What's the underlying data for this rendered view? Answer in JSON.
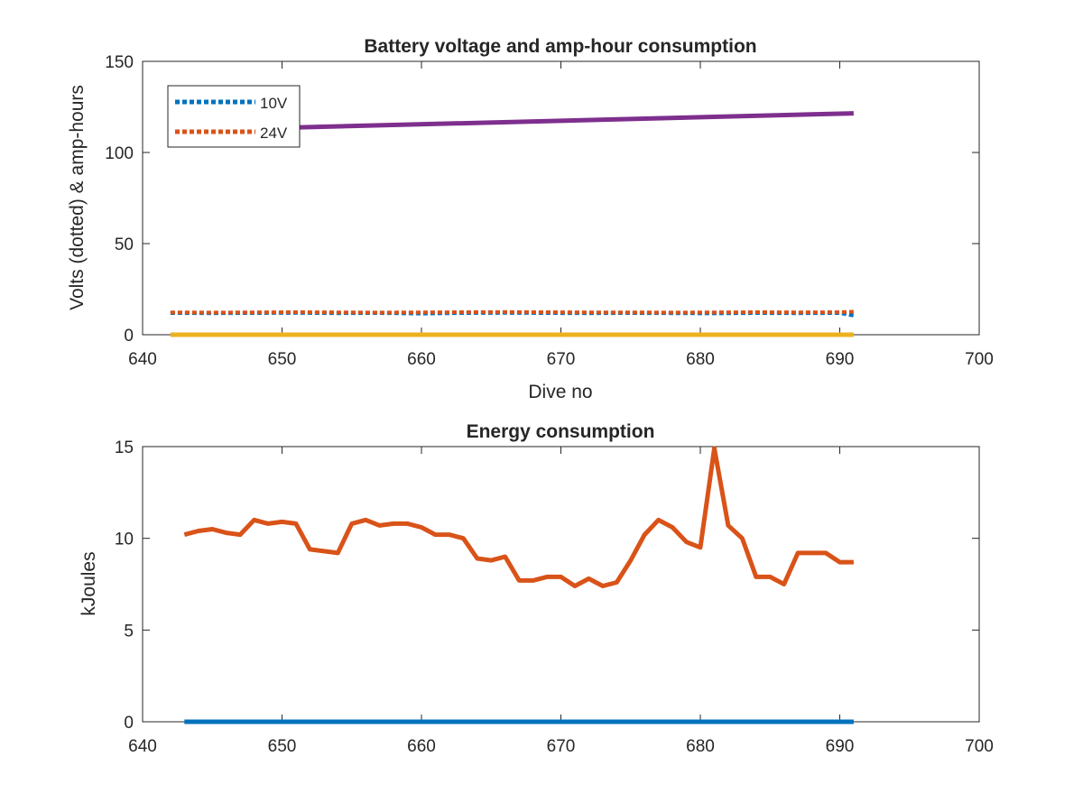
{
  "chart_data": [
    {
      "type": "line",
      "title": "Battery voltage and amp-hour consumption",
      "xlabel": "Dive no",
      "ylabel": "Volts (dotted) & amp-hours",
      "xlim": [
        640,
        700
      ],
      "ylim": [
        0,
        150
      ],
      "xticks": [
        640,
        650,
        660,
        670,
        680,
        690,
        700
      ],
      "yticks": [
        0,
        50,
        100,
        150
      ],
      "legend_position": "top-left",
      "grid": false,
      "series": [
        {
          "name": "10V",
          "style": "dotted",
          "color": "#0072BD",
          "x": [
            642,
            645,
            648,
            651,
            654,
            657,
            660,
            663,
            666,
            669,
            672,
            675,
            678,
            681,
            684,
            687,
            690,
            691
          ],
          "y": [
            11.9,
            11.8,
            11.9,
            12.0,
            11.8,
            11.9,
            11.6,
            11.9,
            12.0,
            11.9,
            11.8,
            11.9,
            11.8,
            11.7,
            11.9,
            11.8,
            11.9,
            10.5
          ]
        },
        {
          "name": "24V",
          "style": "dotted",
          "color": "#D95319",
          "x": [
            642,
            645,
            648,
            651,
            654,
            657,
            660,
            663,
            666,
            669,
            672,
            675,
            678,
            681,
            684,
            687,
            690,
            691
          ],
          "y": [
            12.3,
            12.2,
            12.3,
            12.4,
            12.3,
            12.2,
            12.3,
            12.4,
            12.5,
            12.4,
            12.3,
            12.3,
            12.2,
            12.3,
            12.4,
            12.3,
            12.4,
            12.6
          ]
        },
        {
          "style": "solid",
          "color": "#EDB120",
          "x": [
            642,
            691
          ],
          "y": [
            0,
            0
          ]
        },
        {
          "style": "solid",
          "color": "#7E2F8E",
          "x": [
            642,
            691
          ],
          "y": [
            112,
            121.5
          ]
        }
      ]
    },
    {
      "type": "line",
      "title": "Energy consumption",
      "xlabel": "",
      "ylabel": "kJoules",
      "xlim": [
        640,
        700
      ],
      "ylim": [
        0,
        15
      ],
      "xticks": [
        640,
        650,
        660,
        670,
        680,
        690,
        700
      ],
      "yticks": [
        0,
        5,
        10,
        15
      ],
      "grid": false,
      "series": [
        {
          "style": "solid",
          "color": "#0072BD",
          "x": [
            643,
            691
          ],
          "y": [
            0,
            0
          ]
        },
        {
          "style": "solid",
          "color": "#D95319",
          "x": [
            643,
            644,
            645,
            646,
            647,
            648,
            649,
            650,
            651,
            652,
            653,
            654,
            655,
            656,
            657,
            658,
            659,
            660,
            661,
            662,
            663,
            664,
            665,
            666,
            667,
            668,
            669,
            670,
            671,
            672,
            673,
            674,
            675,
            676,
            677,
            678,
            679,
            680,
            681,
            682,
            683,
            684,
            685,
            686,
            687,
            688,
            689,
            690,
            691
          ],
          "y": [
            10.2,
            10.4,
            10.5,
            10.3,
            10.2,
            11.0,
            10.8,
            10.9,
            10.8,
            9.4,
            9.3,
            9.2,
            10.8,
            11.0,
            10.7,
            10.8,
            10.8,
            10.6,
            10.2,
            10.2,
            10.0,
            8.9,
            8.8,
            9.0,
            7.7,
            7.7,
            7.9,
            7.9,
            7.4,
            7.8,
            7.4,
            7.6,
            8.8,
            10.2,
            11.0,
            10.6,
            9.8,
            9.5,
            14.9,
            10.7,
            10.0,
            7.9,
            7.9,
            7.5,
            9.2,
            9.2,
            9.2,
            8.7,
            8.7
          ]
        }
      ]
    }
  ]
}
